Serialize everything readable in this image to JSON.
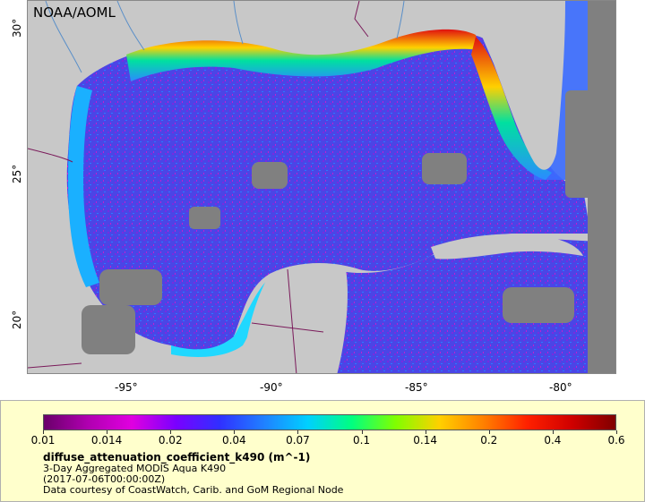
{
  "credit": "NOAA/AOML",
  "x_ticks": [
    "-95°",
    "-90°",
    "-85°",
    "-80°"
  ],
  "y_ticks": [
    "30°",
    "25°",
    "20°"
  ],
  "colorbar": {
    "ticks": [
      "0.01",
      "0.014",
      "0.02",
      "0.04",
      "0.07",
      "0.1",
      "0.14",
      "0.2",
      "0.4",
      "0.6"
    ],
    "colors": [
      "#6a006a",
      "#b000b0",
      "#e000e0",
      "#7a00ff",
      "#3030ff",
      "#2080ff",
      "#00d0ff",
      "#00ff80",
      "#80ff00",
      "#ffd000",
      "#ff8000",
      "#ff2000",
      "#d00000",
      "#800000"
    ]
  },
  "legend": {
    "title": "diffuse_attenuation_coefficient_k490 (m^-1)",
    "line1": "3-Day Aggregated MODIS Aqua K490",
    "line2": "(2017-07-06T00:00:00Z)",
    "line3": "Data courtesy of CoastWatch, Carib. and GoM Regional Node"
  },
  "colors": {
    "land": "#c8c8c8",
    "cloud_mask": "#808080",
    "open_water": "#4a3fe0",
    "coastal_high": "#e01010",
    "mid": "#00c8ff",
    "border_line": "#7a1a5a",
    "river_line": "#5a8fc8"
  }
}
